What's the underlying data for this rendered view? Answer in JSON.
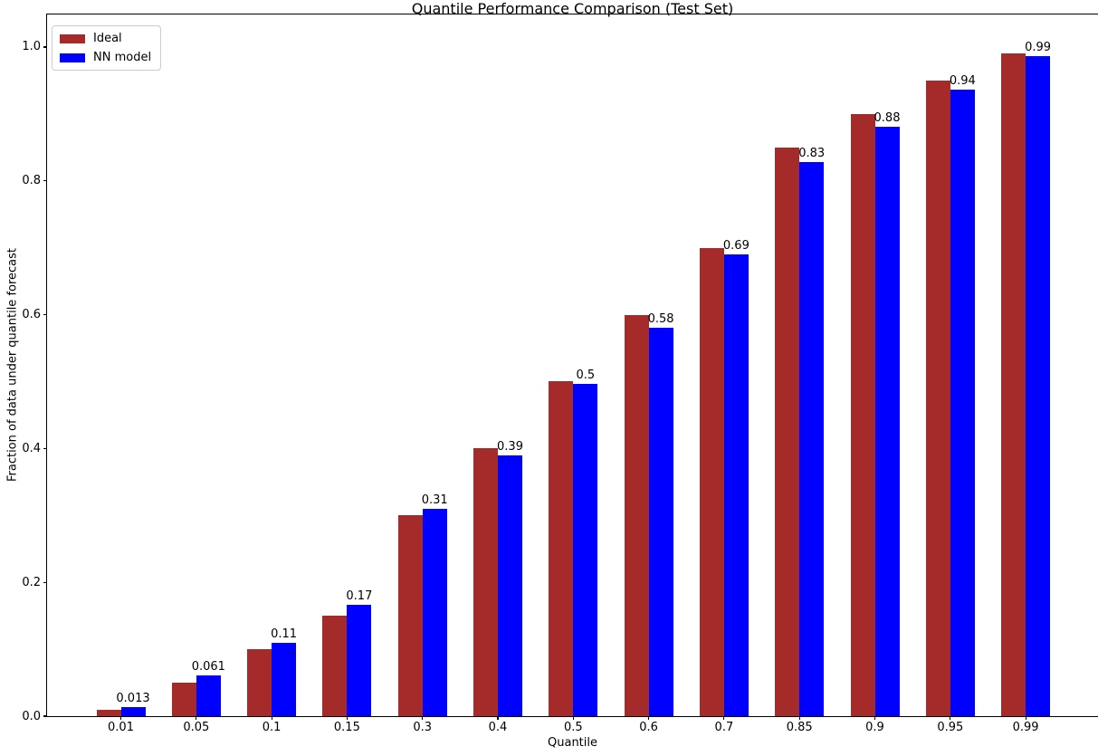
{
  "figure": {
    "title": "Quantile Performance Comparison (Test Set)",
    "xlabel": "Quantile",
    "ylabel": "Fraction of data under quantile forecast"
  },
  "chart_data": {
    "type": "bar",
    "title": "Quantile Performance Comparison (Test Set)",
    "xlabel": "Quantile",
    "ylabel": "Fraction of data under quantile forecast",
    "categories": [
      "0.01",
      "0.05",
      "0.1",
      "0.15",
      "0.3",
      "0.4",
      "0.5",
      "0.6",
      "0.7",
      "0.85",
      "0.9",
      "0.95",
      "0.99"
    ],
    "series": [
      {
        "name": "Ideal",
        "color": "#a52a2a",
        "values": [
          0.01,
          0.05,
          0.1,
          0.15,
          0.3,
          0.4,
          0.5,
          0.6,
          0.7,
          0.85,
          0.9,
          0.95,
          0.99
        ]
      },
      {
        "name": "NN model",
        "color": "#0000ff",
        "values": [
          0.013,
          0.061,
          0.11,
          0.167,
          0.31,
          0.39,
          0.497,
          0.58,
          0.69,
          0.828,
          0.881,
          0.937,
          0.987
        ],
        "bar_labels": [
          "0.013",
          "0.061",
          "0.11",
          "0.17",
          "0.31",
          "0.39",
          "0.5",
          "0.58",
          "0.69",
          "0.83",
          "0.88",
          "0.94",
          "0.99"
        ]
      }
    ],
    "yticks": [
      "0.0",
      "0.2",
      "0.4",
      "0.6",
      "0.8",
      "1.0"
    ],
    "ytick_values": [
      0.0,
      0.2,
      0.4,
      0.6,
      0.8,
      1.0
    ],
    "ylim": [
      0,
      1.05
    ],
    "grid": false,
    "legend_position": "upper left"
  }
}
